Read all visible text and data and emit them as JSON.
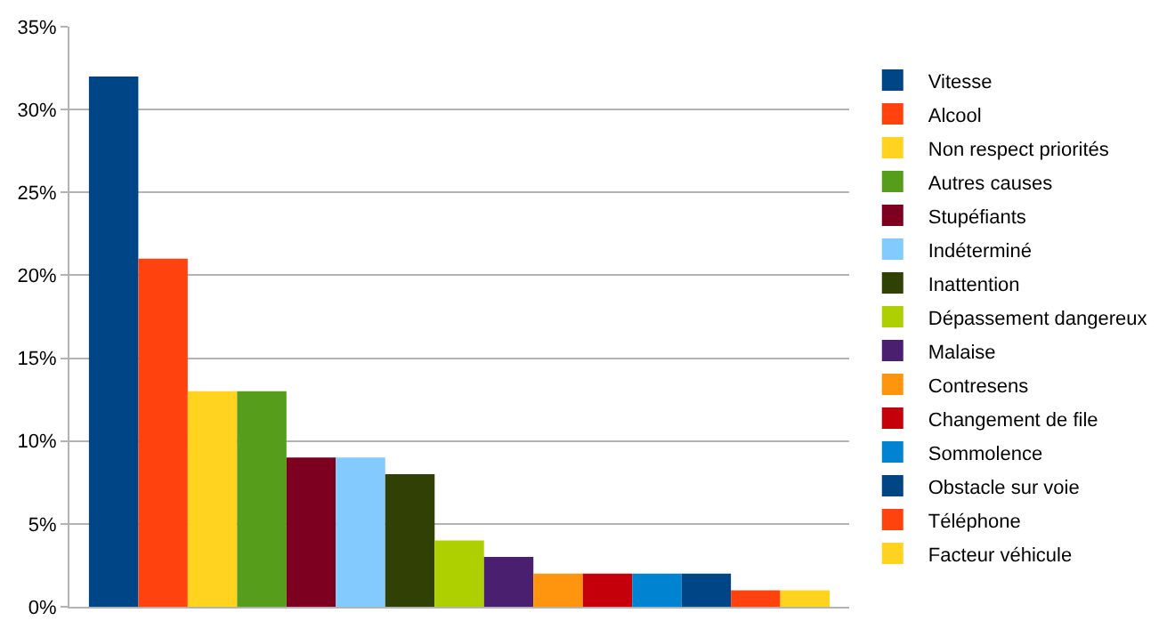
{
  "chart_data": {
    "type": "bar",
    "categories": [
      null
    ],
    "series": [
      {
        "name": "Vitesse",
        "color": "#004586",
        "values": [
          32
        ]
      },
      {
        "name": "Alcool",
        "color": "#ff420e",
        "values": [
          21
        ]
      },
      {
        "name": "Non respect priorités",
        "color": "#ffd320",
        "values": [
          13
        ]
      },
      {
        "name": "Autres causes",
        "color": "#579d1c",
        "values": [
          13
        ]
      },
      {
        "name": "Stupéfiants",
        "color": "#7e0021",
        "values": [
          9
        ]
      },
      {
        "name": "Indéterminé",
        "color": "#83caff",
        "values": [
          9
        ]
      },
      {
        "name": "Inattention",
        "color": "#314004",
        "values": [
          8
        ]
      },
      {
        "name": "Dépassement dangereux",
        "color": "#aecf00",
        "values": [
          4
        ]
      },
      {
        "name": "Malaise",
        "color": "#4b1f6f",
        "values": [
          3
        ]
      },
      {
        "name": "Contresens",
        "color": "#ff950e",
        "values": [
          2
        ]
      },
      {
        "name": "Changement de file",
        "color": "#c5000b",
        "values": [
          2
        ]
      },
      {
        "name": "Sommolence",
        "color": "#0084d1",
        "values": [
          2
        ]
      },
      {
        "name": "Obstacle sur voie",
        "color": "#004586",
        "values": [
          2
        ]
      },
      {
        "name": "Téléphone",
        "color": "#ff420e",
        "values": [
          1
        ]
      },
      {
        "name": "Facteur véhicule",
        "color": "#ffd320",
        "values": [
          1
        ]
      }
    ],
    "ylim": [
      0,
      35
    ],
    "yticks": [
      {
        "value": 0,
        "label": "0%"
      },
      {
        "value": 5,
        "label": "5%"
      },
      {
        "value": 10,
        "label": "10%"
      },
      {
        "value": 15,
        "label": "15%"
      },
      {
        "value": 20,
        "label": "20%"
      },
      {
        "value": 25,
        "label": "25%"
      },
      {
        "value": 30,
        "label": "30%"
      },
      {
        "value": 35,
        "label": "35%"
      }
    ],
    "grid": "y",
    "legend": "right",
    "tick_labels": "y"
  }
}
